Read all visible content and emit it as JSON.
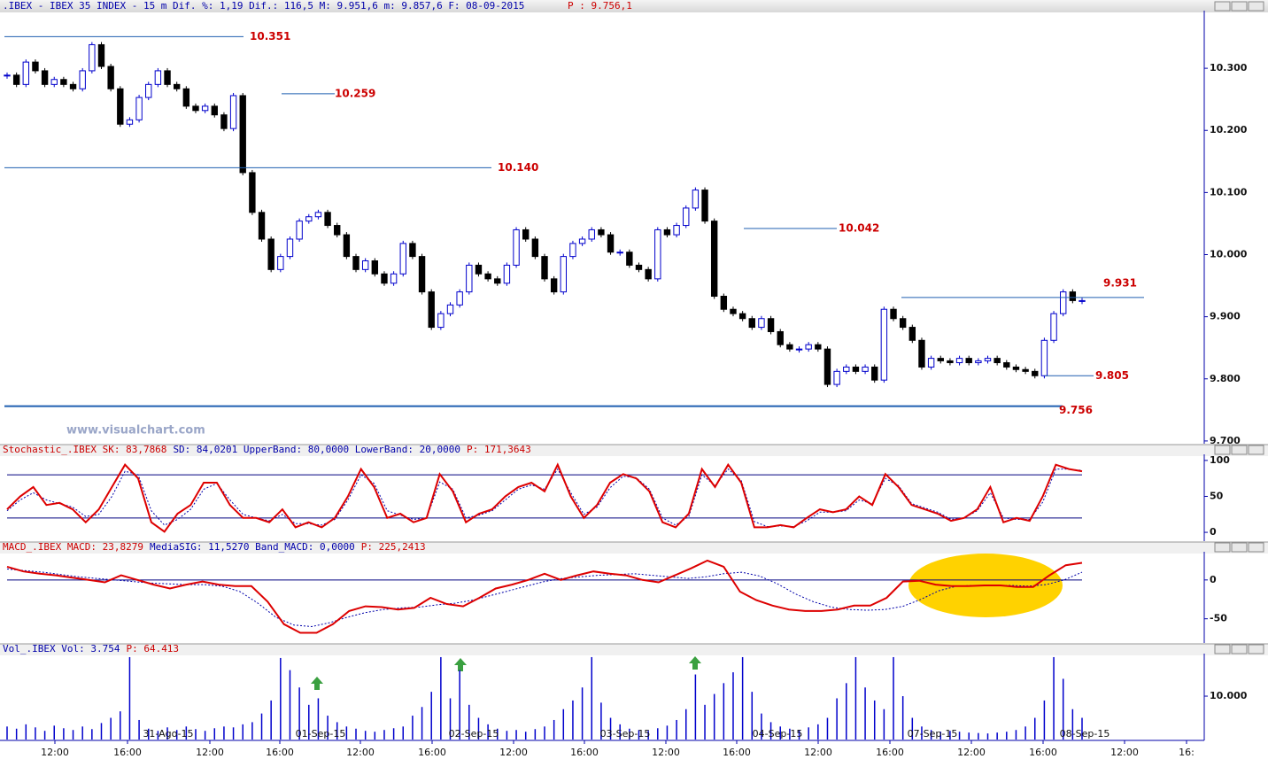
{
  "chart_data": [
    {
      "type": "candlestick",
      "title": ".IBEX - IBEX 35 INDEX -  15 m Dif. %: 1,19 Dif.: 116,5 M: 9.951,6 m: 9.857,6 F: 08-09-2015",
      "title_p": "P : 9.756,1",
      "watermark": "www.visualchart.com",
      "close": [
        10289,
        10274,
        10310,
        10296,
        10274,
        10282,
        10274,
        10267,
        10296,
        10338,
        10303,
        10267,
        10210,
        10217,
        10253,
        10274,
        10296,
        10274,
        10267,
        10239,
        10232,
        10239,
        10225,
        10203,
        10256,
        10132,
        10068,
        10025,
        9976,
        9997,
        10025,
        10054,
        10061,
        10068,
        10047,
        10032,
        9997,
        9976,
        9990,
        9969,
        9954,
        9969,
        10018,
        9997,
        9940,
        9883,
        9905,
        9919,
        9940,
        9983,
        9969,
        9961,
        9954,
        9983,
        10040,
        10025,
        9997,
        9961,
        9940,
        9997,
        10018,
        10025,
        10040,
        10032,
        10004,
        10004,
        9983,
        9976,
        9961,
        10040,
        10032,
        10047,
        10075,
        10104,
        10054,
        9933,
        9912,
        9905,
        9897,
        9883,
        9897,
        9876,
        9855,
        9848,
        9848,
        9855,
        9848,
        9791,
        9812,
        9819,
        9812,
        9819,
        9798,
        9912,
        9897,
        9883,
        9862,
        9819,
        9833,
        9829,
        9826,
        9833,
        9826,
        9829,
        9833,
        9826,
        9819,
        9815,
        9812,
        9805,
        9862,
        9905,
        9940,
        9926,
        9926
      ],
      "up_color": "#0000cc",
      "down_color": "#000000",
      "ylim": [
        9697,
        10390
      ],
      "yticks": [
        {
          "value": 9700,
          "label": "9.700"
        },
        {
          "value": 9800,
          "label": "9.800"
        },
        {
          "value": 9900,
          "label": "9.900"
        },
        {
          "value": 10000,
          "label": "10.000"
        },
        {
          "value": 10100,
          "label": "10.100"
        },
        {
          "value": 10200,
          "label": "10.200"
        },
        {
          "value": 10300,
          "label": "10.300"
        }
      ],
      "levels": [
        {
          "value": 10351,
          "label": "10.351"
        },
        {
          "value": 10259,
          "label": "10.259"
        },
        {
          "value": 10140,
          "label": "10.140"
        },
        {
          "value": 10042,
          "label": "10.042"
        },
        {
          "value": 9931,
          "label": "9.931"
        },
        {
          "value": 9805,
          "label": "9.805"
        },
        {
          "value": 9756,
          "label": "9.756"
        }
      ]
    },
    {
      "type": "line",
      "header": [
        {
          "text": "Stochastic_.IBEX SK: 83,7868",
          "color": "#cc0000"
        },
        {
          "text": "SD: 84,0201 UpperBand: 80,0000 LowerBand: 20,0000",
          "color": "#0000aa"
        },
        {
          "text": "P: 171,3643",
          "color": "#cc0000"
        }
      ],
      "series": [
        {
          "color": "#dd0000",
          "width": 2,
          "dash": false,
          "values": [
            32,
            50,
            63,
            38,
            41,
            32,
            14,
            32,
            63,
            94,
            75,
            14,
            1,
            26,
            38,
            69,
            69,
            38,
            20,
            20,
            14,
            32,
            7,
            14,
            7,
            20,
            50,
            88,
            63,
            20,
            26,
            14,
            20,
            81,
            57,
            14,
            26,
            32,
            50,
            63,
            69,
            57,
            94,
            50,
            20,
            38,
            69,
            81,
            75,
            57,
            14,
            7,
            26,
            88,
            63,
            94,
            69,
            7,
            7,
            10,
            7,
            20,
            32,
            28,
            32,
            50,
            38,
            81,
            63,
            38,
            32,
            26,
            16,
            20,
            32,
            63,
            14,
            20,
            16,
            50,
            94,
            88,
            85
          ]
        },
        {
          "color": "#0000aa",
          "width": 1,
          "dash": true,
          "values": [
            30,
            45,
            55,
            45,
            40,
            35,
            22,
            25,
            50,
            85,
            80,
            30,
            10,
            18,
            32,
            60,
            68,
            45,
            25,
            20,
            16,
            25,
            12,
            12,
            10,
            18,
            45,
            80,
            68,
            30,
            24,
            18,
            20,
            70,
            60,
            20,
            24,
            30,
            45,
            60,
            66,
            60,
            88,
            55,
            25,
            35,
            62,
            78,
            76,
            60,
            20,
            10,
            22,
            80,
            65,
            88,
            72,
            15,
            8,
            9,
            8,
            16,
            28,
            28,
            30,
            45,
            40,
            75,
            65,
            40,
            34,
            28,
            18,
            20,
            30,
            55,
            20,
            18,
            18,
            42,
            88,
            88,
            86
          ]
        }
      ],
      "bands": [
        80,
        20
      ],
      "ylim": [
        -11,
        106
      ],
      "yticks": [
        0,
        50,
        100
      ]
    },
    {
      "type": "line",
      "header": [
        {
          "text": "MACD_.IBEX MACD: 23,8279",
          "color": "#cc0000"
        },
        {
          "text": "MediaSIG: 11,5270 Band_MACD: 0,0000",
          "color": "#0000aa"
        },
        {
          "text": "P: 225,2413",
          "color": "#cc0000"
        }
      ],
      "series": [
        {
          "color": "#dd0000",
          "width": 2,
          "dash": false,
          "values": [
            17,
            11,
            8,
            6,
            3,
            0,
            -3,
            6,
            0,
            -6,
            -11,
            -6,
            -2,
            -6,
            -8,
            -8,
            -28,
            -57,
            -68,
            -68,
            -57,
            -40,
            -34,
            -35,
            -38,
            -36,
            -23,
            -31,
            -34,
            -23,
            -11,
            -6,
            0,
            8,
            0,
            6,
            11,
            8,
            6,
            0,
            -3,
            6,
            15,
            25,
            17,
            -15,
            -26,
            -33,
            -38,
            -40,
            -40,
            -38,
            -33,
            -33,
            -23,
            -2,
            -1,
            -6,
            -8,
            -8,
            -7,
            -7,
            -9,
            -9,
            6,
            19,
            22
          ]
        },
        {
          "color": "#0000aa",
          "width": 1,
          "dash": true,
          "values": [
            14,
            12,
            10,
            7,
            4,
            2,
            0,
            -2,
            -4,
            -5,
            -6,
            -6,
            -8,
            -15,
            -30,
            -48,
            -58,
            -60,
            -55,
            -48,
            -42,
            -38,
            -36,
            -35,
            -32,
            -30,
            -26,
            -20,
            -14,
            -8,
            -2,
            2,
            4,
            6,
            7,
            8,
            6,
            4,
            2,
            4,
            8,
            10,
            5,
            -5,
            -18,
            -28,
            -35,
            -38,
            -39,
            -38,
            -34,
            -25,
            -14,
            -8,
            -7,
            -7,
            -7,
            -8,
            -6,
            0,
            10
          ]
        }
      ],
      "bands": [
        0
      ],
      "ylim": [
        -80,
        34
      ],
      "yticks": [
        -50,
        0
      ]
    },
    {
      "type": "bar",
      "header": [
        {
          "text": "Vol_.IBEX Vol: 3.754",
          "color": "#0000aa"
        },
        {
          "text": "P: 64.413",
          "color": "#cc0000"
        }
      ],
      "color": "#0000cc",
      "values": [
        3000,
        2500,
        3500,
        2800,
        2000,
        3200,
        2600,
        2200,
        3000,
        2400,
        3800,
        5000,
        6500,
        19000,
        4500,
        2500,
        2000,
        2800,
        2200,
        3000,
        2400,
        2000,
        2600,
        3000,
        2800,
        3500,
        4000,
        6000,
        9000,
        18800,
        16000,
        12000,
        8000,
        9500,
        5500,
        4000,
        3000,
        2500,
        2000,
        1800,
        2200,
        2600,
        3000,
        5500,
        7500,
        11000,
        19000,
        9500,
        16000,
        8000,
        5000,
        3500,
        2500,
        2000,
        2200,
        1800,
        2400,
        3000,
        4500,
        7000,
        9000,
        12000,
        19000,
        8500,
        5000,
        3500,
        2500,
        2200,
        2000,
        2600,
        3200,
        4500,
        7000,
        15000,
        8000,
        10500,
        13000,
        15500,
        19000,
        11000,
        6000,
        4000,
        3000,
        2500,
        2200,
        2800,
        3500,
        5000,
        9500,
        13000,
        19000,
        12000,
        9000,
        7000,
        19000,
        10000,
        5000,
        3000,
        2200,
        1800,
        2000,
        1800,
        1600,
        1500,
        1400,
        1600,
        1800,
        2200,
        3000,
        5000,
        9000,
        19000,
        14000,
        7000,
        5000
      ],
      "ylim": [
        0,
        19400
      ],
      "yticks": [
        {
          "value": 10000,
          "label": "10.000"
        }
      ],
      "x_labels": [
        "12:00",
        "16:00",
        "12:00",
        "16:00",
        "12:00",
        "16:00",
        "12:00",
        "16:00",
        "12:00",
        "16:00",
        "12:00",
        "16:00",
        "12:00",
        "16:00",
        "12:00",
        "16:"
      ],
      "date_labels": [
        "31-Ago-15",
        "01-Sep-15",
        "02-Sep-15",
        "03-Sep-15",
        "04-Sep-15",
        "07-Sep-15",
        "08-Sep-15"
      ]
    }
  ]
}
